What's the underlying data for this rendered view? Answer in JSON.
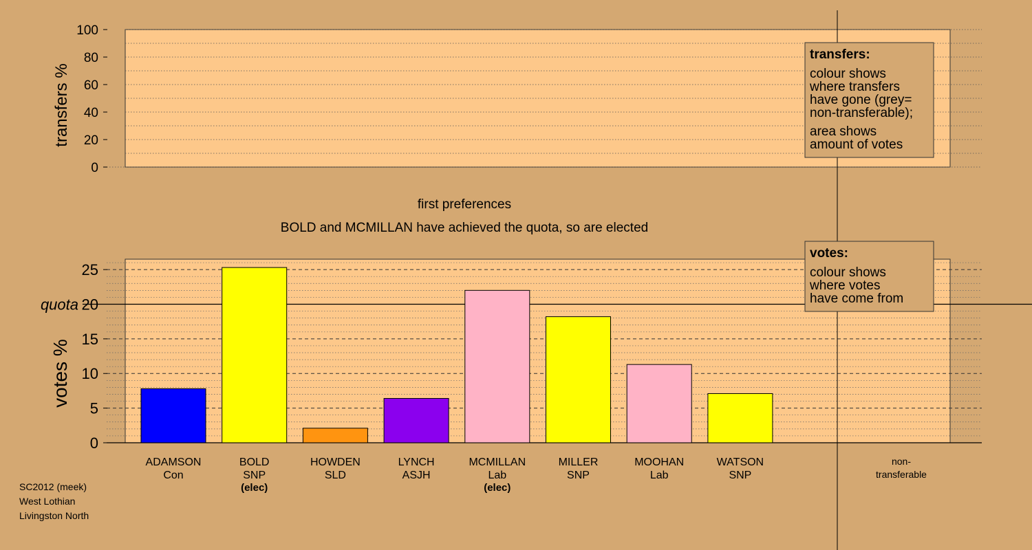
{
  "chart_data": [
    {
      "type": "bar",
      "panel": "transfers",
      "ylabel": "transfers %",
      "ylim": [
        0,
        100
      ],
      "yticks": [
        0,
        20,
        40,
        60,
        80,
        100
      ],
      "values": [],
      "legend": {
        "title": "transfers:",
        "lines": [
          "colour shows",
          "where transfers",
          "have gone (grey=",
          "non-transferable);"
        ],
        "lines2": [
          "area shows",
          "amount of votes"
        ]
      }
    },
    {
      "type": "bar",
      "panel": "votes",
      "title": "first preferences",
      "subtitle": "BOLD and MCMILLAN have achieved the quota, so are elected",
      "ylabel": "votes %",
      "ylim": [
        0,
        26.5
      ],
      "yticks": [
        0,
        5,
        10,
        15,
        20,
        25
      ],
      "quota": 20,
      "quota_label": "quota",
      "legend": {
        "title": "votes:",
        "lines": [
          "colour shows",
          "where votes",
          "have come from"
        ]
      },
      "candidates": [
        {
          "name": "ADAMSON",
          "party": "Con",
          "value": 7.8,
          "color": "#0000ff",
          "status": ""
        },
        {
          "name": "BOLD",
          "party": "SNP",
          "value": 25.3,
          "color": "#ffff00",
          "status": "(elec)"
        },
        {
          "name": "HOWDEN",
          "party": "SLD",
          "value": 2.1,
          "color": "#ff9410",
          "status": ""
        },
        {
          "name": "LYNCH",
          "party": "ASJH",
          "value": 6.4,
          "color": "#8b00ee",
          "status": ""
        },
        {
          "name": "MCMILLAN",
          "party": "Lab",
          "value": 22.0,
          "color": "#ffb3c6",
          "status": "(elec)"
        },
        {
          "name": "MILLER",
          "party": "SNP",
          "value": 18.2,
          "color": "#ffff00",
          "status": ""
        },
        {
          "name": "MOOHAN",
          "party": "Lab",
          "value": 11.3,
          "color": "#ffb3c6",
          "status": ""
        },
        {
          "name": "WATSON",
          "party": "SNP",
          "value": 7.1,
          "color": "#ffff00",
          "status": ""
        }
      ],
      "nontransferable_label": [
        "non-",
        "transferable"
      ]
    }
  ],
  "footer": {
    "line1": "SC2012 (meek)",
    "line2": "West Lothian",
    "line3": "Livingston North"
  },
  "colors": {
    "background": "#d4a872",
    "plot_background": "#fdc88a"
  }
}
